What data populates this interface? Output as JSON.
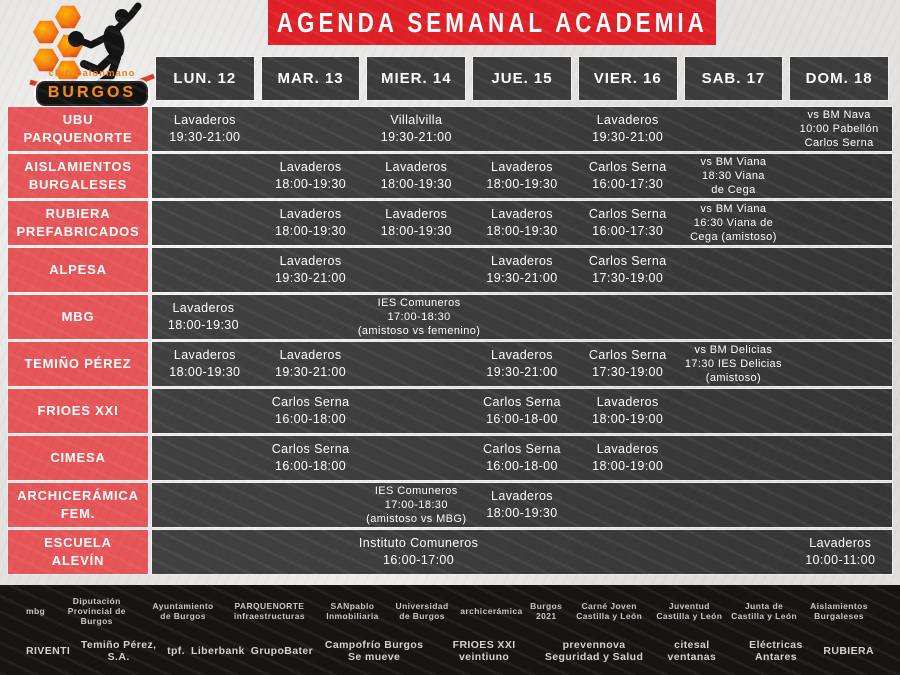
{
  "logo": {
    "club_line": "club balonmano",
    "name": "BURGOS"
  },
  "header": {
    "title": "AGENDA SEMANAL ACADEMIA"
  },
  "schedule": {
    "days": [
      "LUN. 12",
      "MAR. 13",
      "MIER. 14",
      "JUE. 15",
      "VIER. 16",
      "SAB. 17",
      "DOM. 18"
    ],
    "rows": [
      {
        "team": "UBU\nPARQUENORTE",
        "cells": [
          "Lavaderos\n19:30-21:00",
          "",
          "Villalvilla\n19:30-21:00",
          "",
          "Lavaderos\n19:30-21:00",
          "",
          "vs BM Nava\n10:00 Pabellón\nCarlos Serna"
        ]
      },
      {
        "team": "AISLAMIENTOS\nBURGALESES",
        "cells": [
          "",
          "Lavaderos\n18:00-19:30",
          "Lavaderos\n18:00-19:30",
          "Lavaderos\n18:00-19:30",
          "Carlos Serna\n16:00-17:30",
          "vs BM Viana\n18:30 Viana\nde Cega",
          ""
        ]
      },
      {
        "team": "RUBIERA\nPREFABRICADOS",
        "cells": [
          "",
          "Lavaderos\n18:00-19:30",
          "Lavaderos\n18:00-19:30",
          "Lavaderos\n18:00-19:30",
          "Carlos Serna\n16:00-17:30",
          "vs BM Viana\n16:30 Viana de\nCega (amistoso)",
          ""
        ]
      },
      {
        "team": "ALPESA",
        "cells": [
          "",
          "Lavaderos\n19:30-21:00",
          "",
          "Lavaderos\n19:30-21:00",
          "Carlos Serna\n17:30-19:00",
          "",
          ""
        ]
      },
      {
        "team": "MBG",
        "cells": [
          "Lavaderos\n18:00-19:30",
          "",
          "IES Comuneros\n17:00-18:30\n(amistoso vs femenino)",
          "",
          "",
          "",
          ""
        ]
      },
      {
        "team": "TEMIÑO PÉREZ",
        "cells": [
          "Lavaderos\n18:00-19:30",
          "Lavaderos\n19:30-21:00",
          "",
          "Lavaderos\n19:30-21:00",
          "Carlos Serna\n17:30-19:00",
          "vs BM Delicias\n17:30 IES Delicias\n(amistoso)",
          ""
        ]
      },
      {
        "team": "FRIOES XXI",
        "cells": [
          "",
          "Carlos Serna\n16:00-18:00",
          "",
          "Carlos Serna\n16:00-18-00",
          "Lavaderos\n18:00-19:00",
          "",
          ""
        ]
      },
      {
        "team": "CIMESA",
        "cells": [
          "",
          "Carlos Serna\n16:00-18:00",
          "",
          "Carlos Serna\n16:00-18-00",
          "Lavaderos\n18:00-19:00",
          "",
          ""
        ]
      },
      {
        "team": "ARCHICERÁMICA\nFEM.",
        "cells": [
          "",
          "",
          "IES Comuneros\n17:00-18:30\n(amistoso vs MBG)",
          "Lavaderos\n18:00-19:30",
          "",
          "",
          ""
        ]
      },
      {
        "team": "ESCUELA\nALEVÍN",
        "cells": [
          "",
          "",
          "Instituto Comuneros\n16:00-17:00",
          "",
          "",
          "",
          "Lavaderos\n10:00-11:00"
        ]
      }
    ]
  },
  "sponsors": {
    "row1": [
      "mbg",
      "Diputación Provincial de Burgos",
      "Ayuntamiento de Burgos",
      "PARQUENORTE infraestructuras",
      "SANpablo Inmobiliaria",
      "Universidad de Burgos",
      "archicerámica",
      "Burgos 2021",
      "Carné Joven Castilla y León",
      "Juventud Castilla y León",
      "Junta de Castilla y León",
      "Aislamientos Burgaleses"
    ],
    "row2": [
      "RIVENTI",
      "Temiño Pérez, S.A.",
      "tpf.",
      "Liberbank",
      "GrupoBater",
      "Campofrío Burgos Se mueve",
      "FRIOES XXI veintiuno",
      "prevennova Seguridad y Salud",
      "citesal ventanas",
      "Eléctricas Antares",
      "RUBIERA"
    ]
  },
  "colors": {
    "accent_red": "#e02027",
    "team_red": "#e65558",
    "cell_dark": "#3a3939",
    "band_black": "#161514",
    "logo_orange": "#ef8b1d"
  }
}
